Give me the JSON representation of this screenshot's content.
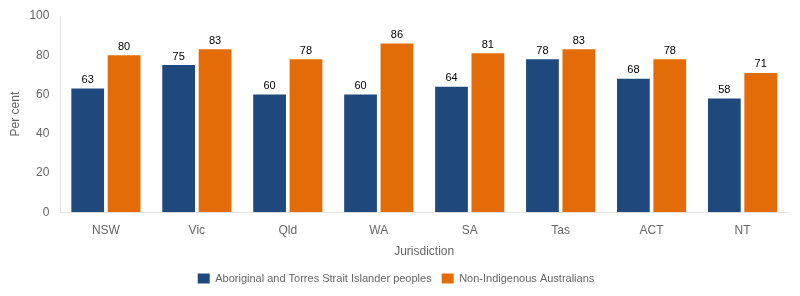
{
  "chart_data": {
    "type": "bar",
    "xlabel": "Jurisdiction",
    "ylabel": "Per cent",
    "categories": [
      "NSW",
      "Vic",
      "Qld",
      "WA",
      "SA",
      "Tas",
      "ACT",
      "NT"
    ],
    "series": [
      {
        "name": "Aboriginal and Torres Strait Islander peoples",
        "color": "#1F497D",
        "values": [
          63,
          75,
          60,
          60,
          64,
          78,
          68,
          58
        ]
      },
      {
        "name": "Non-Indigenous Australians",
        "color": "#E36C09",
        "values": [
          80,
          83,
          78,
          86,
          81,
          83,
          78,
          71
        ]
      }
    ],
    "ylim": [
      0,
      100
    ],
    "yticks": [
      0,
      20,
      40,
      60,
      80,
      100
    ],
    "grid": false,
    "legend": "bottom",
    "data_labels": true
  }
}
